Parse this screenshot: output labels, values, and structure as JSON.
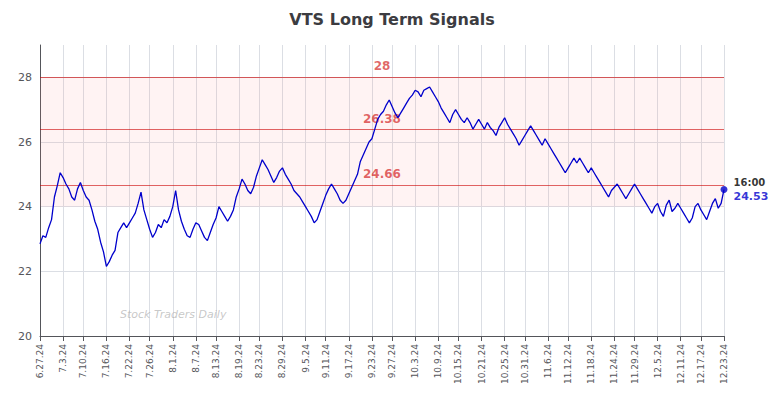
{
  "chart_data": {
    "type": "line",
    "title": "VTS Long Term Signals",
    "watermark": "Stock Traders Daily",
    "color": "#0000cc",
    "ylim": [
      20,
      29
    ],
    "yticks": [
      20,
      22,
      24,
      26,
      28
    ],
    "grid": true,
    "hlines": [
      {
        "y": 28.0,
        "label": "28",
        "color": "#cc0000"
      },
      {
        "y": 26.38,
        "label": "26.38",
        "color": "#cc0000"
      },
      {
        "y": 24.66,
        "label": "24.66",
        "color": "#cc0000"
      }
    ],
    "bands": [
      {
        "from": 26.38,
        "to": 28.0,
        "color": "#ff8888"
      },
      {
        "from": 24.66,
        "to": 26.38,
        "color": "#ff8888"
      },
      {
        "from": 24.0,
        "to": 24.66,
        "color": "#ff8888"
      }
    ],
    "last_time_label": "16:00",
    "last_value_label": "24.53",
    "categories": [
      "6.27.24",
      null,
      null,
      null,
      null,
      null,
      null,
      null,
      "7.3.24",
      null,
      null,
      null,
      null,
      null,
      null,
      "7.10.24",
      null,
      null,
      null,
      null,
      null,
      null,
      null,
      "7.16.24",
      null,
      null,
      null,
      null,
      null,
      null,
      null,
      "7.22.24",
      null,
      null,
      null,
      null,
      null,
      null,
      "7.26.24",
      null,
      null,
      null,
      null,
      null,
      null,
      null,
      "8.1.24",
      null,
      null,
      null,
      null,
      null,
      null,
      null,
      "8.7.24",
      null,
      null,
      null,
      null,
      null,
      null,
      "8.13.24",
      null,
      null,
      null,
      null,
      null,
      null,
      null,
      "8.19.24",
      null,
      null,
      null,
      null,
      null,
      null,
      "8.23.24",
      null,
      null,
      null,
      null,
      null,
      null,
      null,
      "8.29.24",
      null,
      null,
      null,
      null,
      null,
      null,
      null,
      "9.5.24",
      null,
      null,
      null,
      null,
      null,
      null,
      "9.11.24",
      null,
      null,
      null,
      null,
      null,
      null,
      null,
      "9.17.24",
      null,
      null,
      null,
      null,
      null,
      null,
      null,
      "9.23.24",
      null,
      null,
      null,
      null,
      null,
      null,
      "9.27.24",
      null,
      null,
      null,
      null,
      null,
      null,
      null,
      "10.3.24",
      null,
      null,
      null,
      null,
      null,
      null,
      null,
      "10.9.24",
      null,
      null,
      null,
      null,
      null,
      null,
      "10.15.24",
      null,
      null,
      null,
      null,
      null,
      null,
      null,
      "10.21.24",
      null,
      null,
      null,
      null,
      null,
      null,
      null,
      "10.25.24",
      null,
      null,
      null,
      null,
      null,
      null,
      "10.31.24",
      null,
      null,
      null,
      null,
      null,
      null,
      null,
      "11.6.24",
      null,
      null,
      null,
      null,
      null,
      null,
      "11.12.24",
      null,
      null,
      null,
      null,
      null,
      null,
      null,
      "11.18.24",
      null,
      null,
      null,
      null,
      null,
      null,
      null,
      "11.24.24",
      null,
      null,
      null,
      null,
      null,
      null,
      "11.29.24",
      null,
      null,
      null,
      null,
      null,
      null,
      null,
      "12.5.24",
      null,
      null,
      null,
      null,
      null,
      null,
      null,
      "12.11.24",
      null,
      null,
      null,
      null,
      null,
      null,
      "12.17.24",
      null,
      null,
      null,
      null,
      null,
      null,
      null,
      "12.23.24"
    ],
    "values": [
      22.85,
      23.1,
      23.05,
      23.35,
      23.6,
      24.3,
      24.65,
      25.05,
      24.9,
      24.7,
      24.55,
      24.3,
      24.2,
      24.55,
      24.75,
      24.5,
      24.3,
      24.2,
      23.9,
      23.55,
      23.3,
      22.9,
      22.6,
      22.15,
      22.3,
      22.5,
      22.65,
      23.2,
      23.35,
      23.5,
      23.35,
      23.5,
      23.65,
      23.8,
      24.1,
      24.45,
      23.9,
      23.6,
      23.3,
      23.05,
      23.2,
      23.45,
      23.35,
      23.6,
      23.5,
      23.7,
      24.0,
      24.5,
      23.9,
      23.55,
      23.3,
      23.1,
      23.05,
      23.3,
      23.5,
      23.45,
      23.25,
      23.05,
      22.95,
      23.2,
      23.45,
      23.65,
      24.0,
      23.85,
      23.7,
      23.55,
      23.7,
      23.9,
      24.3,
      24.55,
      24.85,
      24.7,
      24.5,
      24.4,
      24.6,
      24.95,
      25.2,
      25.45,
      25.3,
      25.15,
      24.95,
      24.75,
      24.9,
      25.1,
      25.2,
      25.0,
      24.85,
      24.7,
      24.5,
      24.4,
      24.3,
      24.15,
      24.0,
      23.85,
      23.7,
      23.5,
      23.6,
      23.85,
      24.1,
      24.35,
      24.55,
      24.7,
      24.55,
      24.4,
      24.2,
      24.1,
      24.2,
      24.4,
      24.6,
      24.8,
      25.0,
      25.4,
      25.6,
      25.8,
      26.0,
      26.1,
      26.4,
      26.7,
      26.85,
      26.95,
      27.15,
      27.3,
      27.1,
      26.9,
      26.75,
      26.9,
      27.05,
      27.2,
      27.35,
      27.45,
      27.6,
      27.55,
      27.4,
      27.6,
      27.65,
      27.7,
      27.55,
      27.4,
      27.25,
      27.05,
      26.9,
      26.75,
      26.6,
      26.85,
      27.0,
      26.85,
      26.7,
      26.6,
      26.75,
      26.6,
      26.4,
      26.55,
      26.7,
      26.55,
      26.4,
      26.6,
      26.45,
      26.35,
      26.2,
      26.45,
      26.6,
      26.75,
      26.55,
      26.4,
      26.25,
      26.1,
      25.9,
      26.05,
      26.2,
      26.35,
      26.5,
      26.35,
      26.2,
      26.05,
      25.9,
      26.1,
      25.95,
      25.8,
      25.65,
      25.5,
      25.35,
      25.2,
      25.05,
      25.2,
      25.35,
      25.5,
      25.35,
      25.5,
      25.35,
      25.2,
      25.05,
      25.2,
      25.05,
      24.9,
      24.75,
      24.6,
      24.45,
      24.3,
      24.5,
      24.6,
      24.7,
      24.55,
      24.4,
      24.25,
      24.4,
      24.55,
      24.7,
      24.55,
      24.4,
      24.25,
      24.1,
      23.95,
      23.8,
      24.0,
      24.1,
      23.85,
      23.7,
      24.05,
      24.2,
      23.85,
      23.95,
      24.1,
      23.95,
      23.8,
      23.65,
      23.5,
      23.65,
      24.0,
      24.1,
      23.9,
      23.75,
      23.6,
      23.85,
      24.1,
      24.25,
      23.95,
      24.1,
      24.53
    ]
  }
}
